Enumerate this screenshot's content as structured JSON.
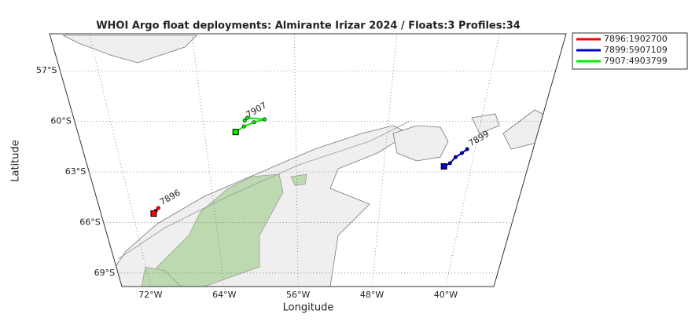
{
  "map": {
    "title": "WHOI Argo float deployments: Almirante Irizar 2024 / Floats:3  Profiles:34",
    "xlabel": "Longitude",
    "ylabel": "Latitude",
    "xlim": [
      -75.1,
      -34.8
    ],
    "ylim": [
      -69.8,
      -54.8
    ],
    "xticks": [
      {
        "value": -72,
        "label": "72°W"
      },
      {
        "value": -64,
        "label": "64°W"
      },
      {
        "value": -56,
        "label": "56°W"
      },
      {
        "value": -48,
        "label": "48°W"
      },
      {
        "value": -40,
        "label": "40°W"
      }
    ],
    "yticks": [
      {
        "value": -57,
        "label": "57°S"
      },
      {
        "value": -60,
        "label": "60°S"
      },
      {
        "value": -63,
        "label": "63°S"
      },
      {
        "value": -66,
        "label": "66°S"
      },
      {
        "value": -69,
        "label": "69°S"
      }
    ],
    "floats": [
      {
        "name": "7896",
        "legend": "7896:1902700",
        "color": "#ff0000",
        "lon": [
          -69.97,
          -69.7,
          -69.4
        ],
        "lat": [
          -65.47,
          -65.3,
          -65.14
        ]
      },
      {
        "name": "7899",
        "legend": "7899:5907109",
        "color": "#0000cc",
        "lon": [
          -42.5,
          -42.0,
          -41.6,
          -41.1,
          -40.7
        ],
        "lat": [
          -62.67,
          -62.48,
          -62.12,
          -61.88,
          -61.65
        ]
      },
      {
        "name": "7907",
        "legend": "7907:4903799",
        "color": "#00ee00",
        "lon": [
          -61.27,
          -60.5,
          -59.6,
          -58.68,
          -60.15,
          -60.4
        ],
        "lat": [
          -60.63,
          -60.3,
          -60.05,
          -59.88,
          -59.79,
          -59.95
        ]
      }
    ]
  }
}
